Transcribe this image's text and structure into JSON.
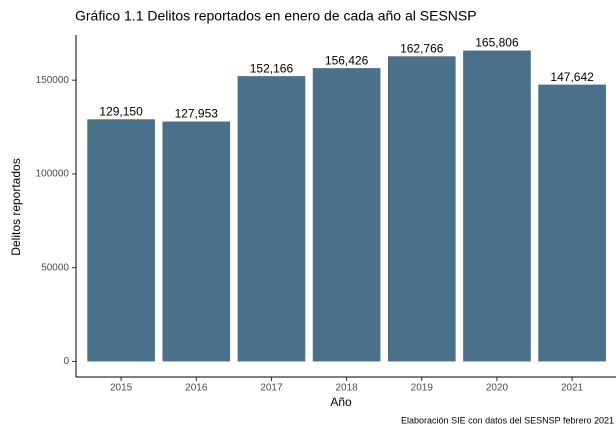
{
  "chart_data": {
    "type": "bar",
    "title": "Gráfico 1.1 Delitos reportados en enero de cada año al SESNSP",
    "x_label": "Año",
    "y_label": "Delitos reportados",
    "caption": "Elaboración SIE con datos del SESNSP febrero 2021",
    "categories": [
      "2015",
      "2016",
      "2017",
      "2018",
      "2019",
      "2020",
      "2021"
    ],
    "values": [
      129150,
      127953,
      152166,
      156426,
      162766,
      165806,
      147642
    ],
    "value_labels": [
      "129,150",
      "127,953",
      "152,166",
      "156,426",
      "162,766",
      "165,806",
      "147,642"
    ],
    "color": "#4b7089",
    "ylim": [
      -8290,
      174096
    ],
    "yticks": [
      0,
      50000,
      100000,
      150000
    ],
    "grid": false
  }
}
